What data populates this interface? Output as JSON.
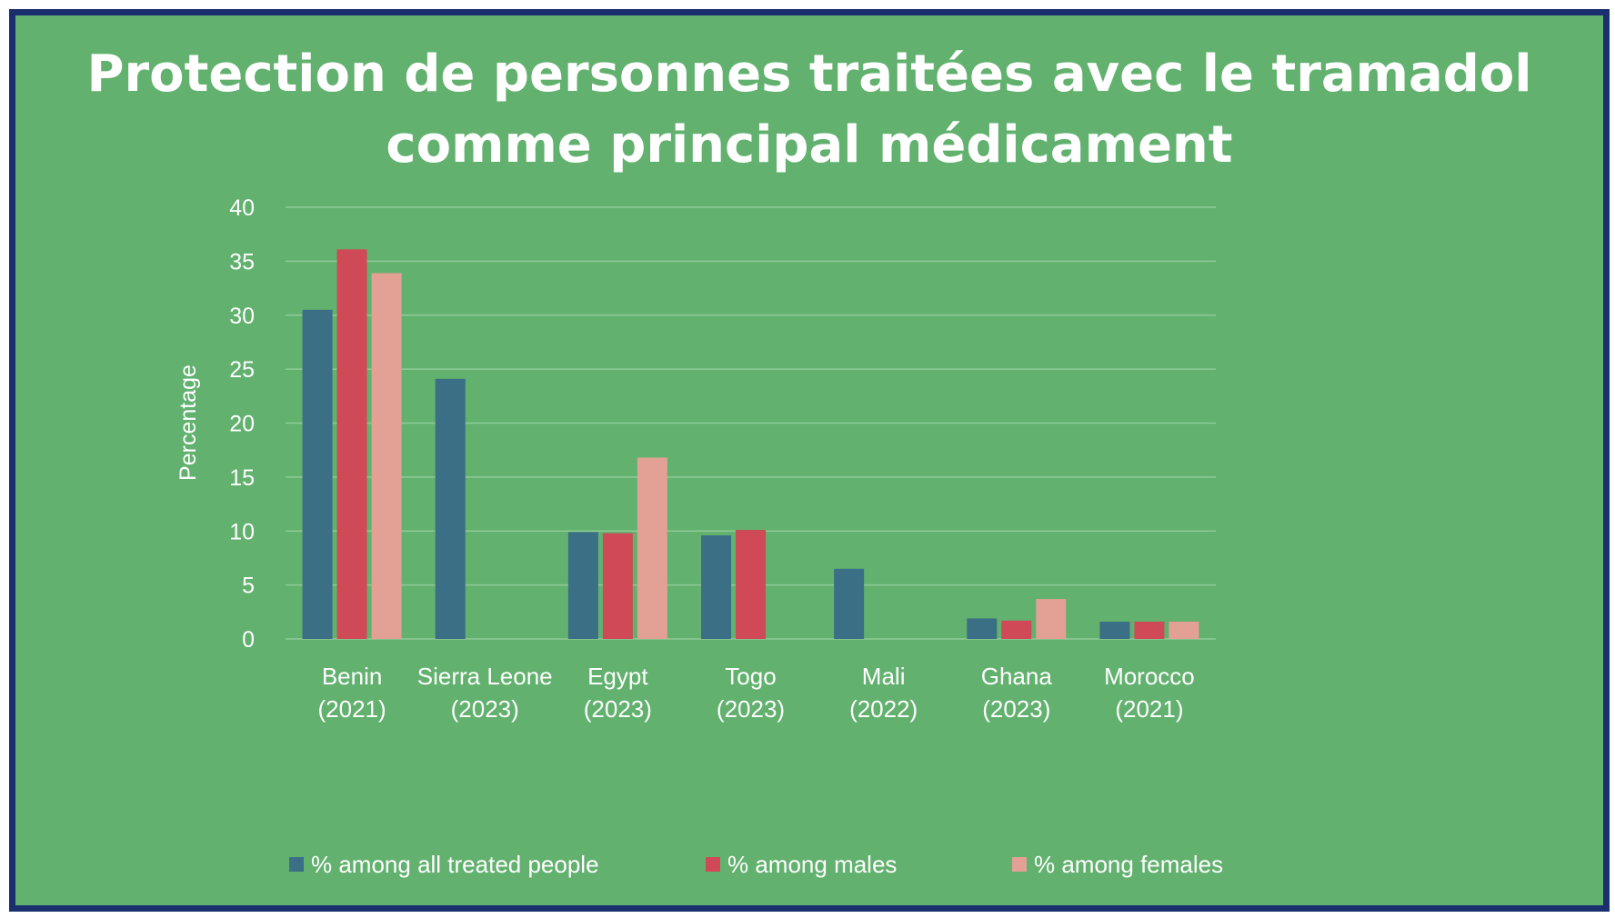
{
  "chart_data": {
    "type": "bar",
    "title": "Protection de personnes traitées avec le tramadol comme principal médicament",
    "xlabel": "",
    "ylabel": "Percentage",
    "ylim": [
      0,
      40
    ],
    "yticks": [
      0,
      5,
      10,
      15,
      20,
      25,
      30,
      35,
      40
    ],
    "grid": true,
    "legend_position": "bottom",
    "categories": [
      [
        "Benin",
        "(2021)"
      ],
      [
        "Sierra Leone",
        "(2023)"
      ],
      [
        "Egypt",
        "(2023)"
      ],
      [
        "Togo",
        "(2023)"
      ],
      [
        "Mali",
        "(2022)"
      ],
      [
        "Ghana",
        "(2023)"
      ],
      [
        "Morocco",
        "(2021)"
      ]
    ],
    "series": [
      {
        "name": "% among all treated people",
        "color": "#3a6f86",
        "values": [
          30.5,
          24.1,
          9.9,
          9.6,
          6.5,
          1.9,
          1.6
        ]
      },
      {
        "name": "% among males",
        "color": "#cf4a56",
        "values": [
          36.1,
          null,
          9.8,
          10.1,
          null,
          1.7,
          1.6
        ]
      },
      {
        "name": "% among females",
        "color": "#e3a195",
        "values": [
          33.9,
          null,
          16.8,
          null,
          null,
          3.7,
          1.6
        ]
      }
    ]
  },
  "colors": {
    "background": "#62b16f",
    "border": "#1b2e6e",
    "text": "#ffffff",
    "gridline": "#8fcb97"
  }
}
